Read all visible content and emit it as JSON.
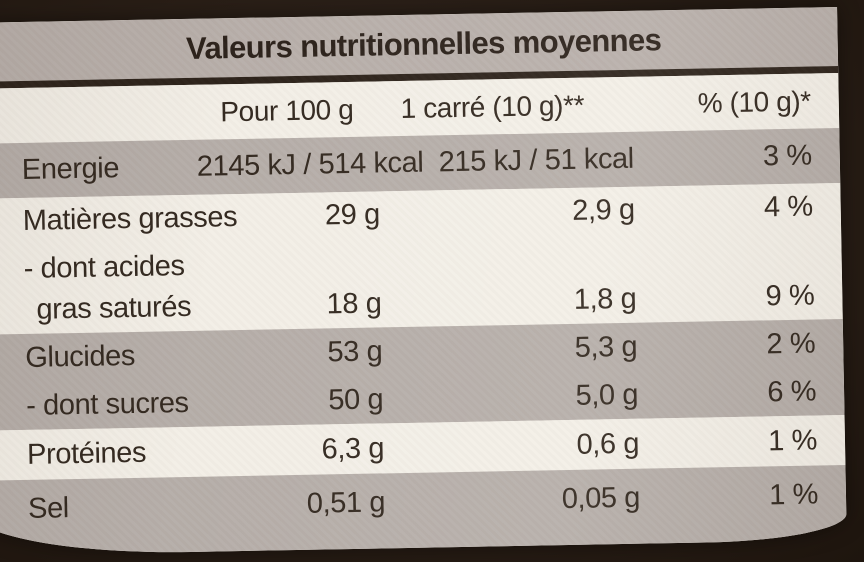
{
  "label": {
    "title": "Valeurs nutritionnelles moyennes",
    "columns": {
      "per_100g": "Pour 100 g",
      "per_square": "1 carré (10 g)**",
      "percent_ri": "% (10 g)*"
    },
    "lines": [
      {
        "label": "Energie",
        "v100": "2145 kJ / 514 kcal",
        "v10": "215 kJ / 51 kcal",
        "pct": "3 %"
      },
      {
        "label": "Matières grasses",
        "v100": "29 g",
        "v10": "2,9 g",
        "pct": "4 %"
      },
      {
        "label": "- dont acides",
        "v100": "",
        "v10": "",
        "pct": ""
      },
      {
        "label": "gras saturés",
        "v100": "18 g",
        "v10": "1,8 g",
        "pct": "9 %"
      },
      {
        "label": "Glucides",
        "v100": "53 g",
        "v10": "5,3 g",
        "pct": "2 %"
      },
      {
        "label": "- dont sucres",
        "v100": "50 g",
        "v10": "5,0 g",
        "pct": "6 %"
      },
      {
        "label": "Protéines",
        "v100": "6,3 g",
        "v10": "0,6 g",
        "pct": "1 %"
      },
      {
        "label": "Sel",
        "v100": "0,51 g",
        "v10": "0,05 g",
        "pct": "1 %"
      }
    ],
    "colors": {
      "band_gray": "#b6aea9",
      "band_cream": "#f3efe7",
      "wrapper_dark_brown": "#291e16",
      "text_dark": "#2b211a"
    }
  }
}
